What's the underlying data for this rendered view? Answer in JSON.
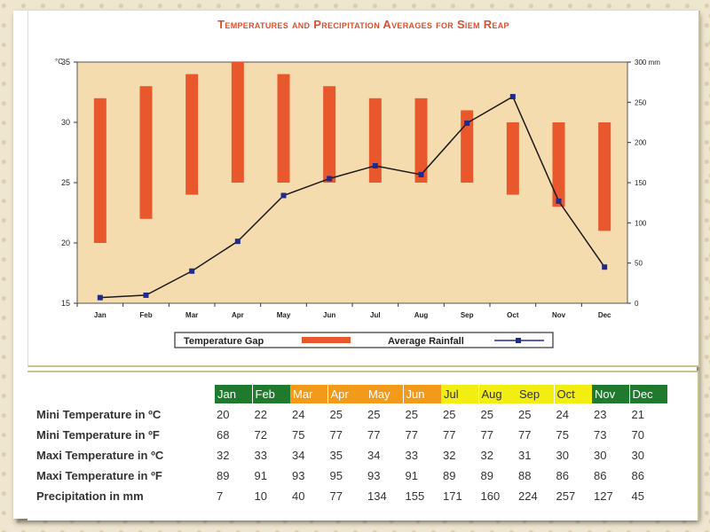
{
  "chart_data": {
    "type": "bar-line combo",
    "title": "Temperatures and Precipitation Averages for Siem Reap",
    "categories": [
      "Jan",
      "Feb",
      "Mar",
      "Apr",
      "May",
      "Jun",
      "Jul",
      "Aug",
      "Sep",
      "Oct",
      "Nov",
      "Dec"
    ],
    "left_axis": {
      "unit": "°C",
      "ylim": [
        15,
        35
      ],
      "ticks": [
        15,
        20,
        25,
        30,
        35
      ]
    },
    "right_axis": {
      "unit": "300 mm",
      "ylim": [
        0,
        300
      ],
      "ticks": [
        0,
        50,
        100,
        150,
        200,
        250,
        "300 mm"
      ]
    },
    "series": [
      {
        "name": "Temperature Gap",
        "type": "floating-bar",
        "axis": "left",
        "color": "#e8582c",
        "low": [
          20,
          22,
          24,
          25,
          25,
          25,
          25,
          25,
          25,
          24,
          23,
          21
        ],
        "high": [
          32,
          33,
          34,
          35,
          34,
          33,
          32,
          32,
          31,
          30,
          30,
          30
        ]
      },
      {
        "name": "Average Rainfall",
        "type": "line",
        "axis": "right",
        "color": "#1a1a1a",
        "marker_color": "#1e2a8c",
        "values": [
          7,
          10,
          40,
          77,
          134,
          155,
          171,
          160,
          224,
          257,
          127,
          45
        ]
      }
    ],
    "plot_background": "#f5dcae",
    "legend_position": "bottom"
  },
  "table": {
    "months": [
      {
        "label": "Jan",
        "color": "#1f7a2e"
      },
      {
        "label": "Feb",
        "color": "#1f7a2e"
      },
      {
        "label": "Mar",
        "color": "#f39a1a"
      },
      {
        "label": "Apr",
        "color": "#f39a1a"
      },
      {
        "label": "May",
        "color": "#f39a1a"
      },
      {
        "label": "Jun",
        "color": "#f39a1a"
      },
      {
        "label": "Jul",
        "color": "#f2ee12"
      },
      {
        "label": "Aug",
        "color": "#f2ee12"
      },
      {
        "label": "Sep",
        "color": "#f2ee12"
      },
      {
        "label": "Oct",
        "color": "#f2ee12"
      },
      {
        "label": "Nov",
        "color": "#1f7a2e"
      },
      {
        "label": "Dec",
        "color": "#1f7a2e"
      }
    ],
    "rows": [
      {
        "label": "Mini Temperature in ºC",
        "values": [
          "20",
          "22",
          "24",
          "25",
          "25",
          "25",
          "25",
          "25",
          "25",
          "24",
          "23",
          "21"
        ]
      },
      {
        "label": "Mini Temperature in ºF",
        "values": [
          "68",
          "72",
          "75",
          "77",
          "77",
          "77",
          "77",
          "77",
          "77",
          "75",
          "73",
          "70"
        ]
      },
      {
        "label": "Maxi Temperature in ºC",
        "values": [
          "32",
          "33",
          "34",
          "35",
          "34",
          "33",
          "32",
          "32",
          "31",
          "30",
          "30",
          "30"
        ]
      },
      {
        "label": "Maxi Temperature in ºF",
        "values": [
          "89",
          "91",
          "93",
          "95",
          "93",
          "91",
          "89",
          "89",
          "88",
          "86",
          "86",
          "86"
        ]
      },
      {
        "label": "Precipitation in mm",
        "values": [
          "7",
          "10",
          "40",
          "77",
          "134",
          "155",
          "171",
          "160",
          "224",
          "257",
          "127",
          "45"
        ]
      }
    ]
  }
}
